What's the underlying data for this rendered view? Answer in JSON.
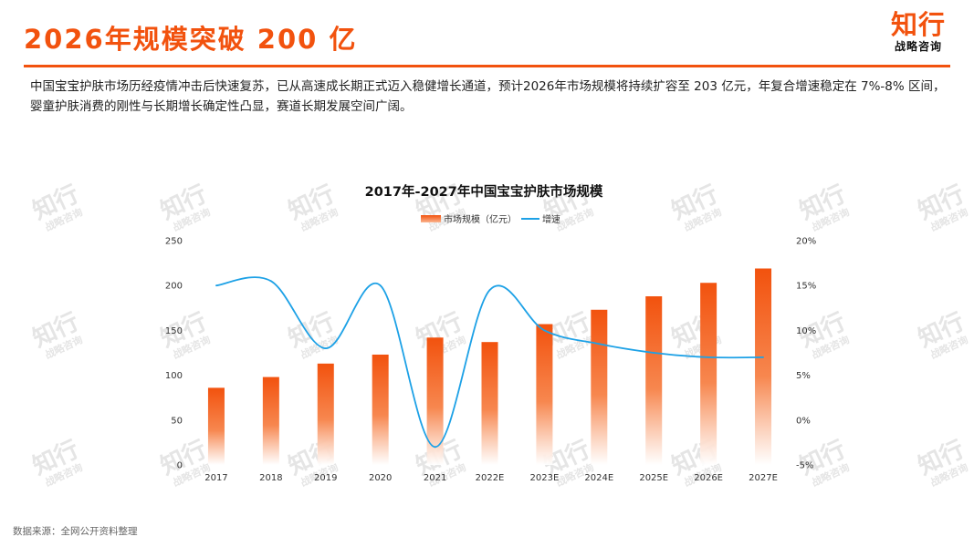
{
  "header": {
    "title": "2026年规模突破 200 亿",
    "logo_main": "知行",
    "logo_sub": "战略咨询"
  },
  "intro": "中国宝宝护肤市场历经疫情冲击后快速复苏，已从高速成长期正式迈入稳健增长通道，预计2026年市场规模将持续扩容至 203 亿元，年复合增速稳定在 7%-8% 区间，婴童护肤消费的刚性与长期增长确定性凸显，赛道长期发展空间广阔。",
  "source": "数据来源：全网公开资料整理",
  "watermark": {
    "main": "知行",
    "sub": "战略咨询"
  },
  "colors": {
    "accent": "#f2520e",
    "line": "#1da1e6"
  },
  "chart_data": {
    "type": "bar",
    "title": "2017年-2027年中国宝宝护肤市场规模",
    "categories": [
      "2017",
      "2018",
      "2019",
      "2020",
      "2021",
      "2022E",
      "2023E",
      "2024E",
      "2025E",
      "2026E",
      "2027E"
    ],
    "series": [
      {
        "name": "市场规模（亿元）",
        "type": "bar",
        "axis": "left",
        "values": [
          86,
          98,
          113,
          123,
          142,
          137,
          157,
          173,
          188,
          203,
          219
        ]
      },
      {
        "name": "增速",
        "type": "line",
        "axis": "right",
        "values": [
          15.0,
          15.5,
          8.0,
          15.0,
          -3.0,
          14.5,
          10.0,
          8.5,
          7.5,
          7.0,
          7.0
        ]
      }
    ],
    "y_left": {
      "min": 0,
      "max": 250,
      "ticks": [
        "0",
        "50",
        "100",
        "150",
        "200",
        "250"
      ]
    },
    "y_right": {
      "min": -5,
      "max": 20,
      "ticks": [
        "-5%",
        "0%",
        "5%",
        "10%",
        "15%",
        "20%"
      ]
    },
    "legend_position": "top-center",
    "grid": false
  }
}
